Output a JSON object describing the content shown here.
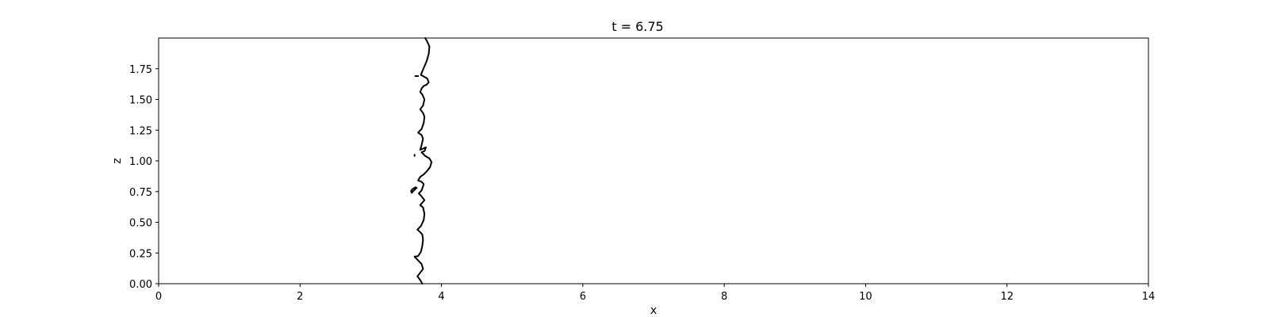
{
  "chart_data": {
    "type": "line",
    "title": "t = 6.75",
    "xlabel": "x",
    "ylabel": "z",
    "xlim": [
      0,
      14
    ],
    "ylim": [
      0,
      2
    ],
    "xticks": [
      0,
      2,
      4,
      6,
      8,
      10,
      12,
      14
    ],
    "xtick_labels": [
      "0",
      "2",
      "4",
      "6",
      "8",
      "10",
      "12",
      "14"
    ],
    "yticks": [
      0,
      0.25,
      0.5,
      0.75,
      1.0,
      1.25,
      1.5,
      1.75
    ],
    "ytick_labels": [
      "0.00",
      "0.25",
      "0.50",
      "0.75",
      "1.00",
      "1.25",
      "1.50",
      "1.75"
    ],
    "grid": false,
    "line_color": "#000000",
    "series": [
      {
        "points": [
          [
            3.73,
            0.0
          ],
          [
            3.7,
            0.03
          ],
          [
            3.66,
            0.06
          ],
          [
            3.7,
            0.09
          ],
          [
            3.74,
            0.12
          ],
          [
            3.72,
            0.16
          ],
          [
            3.67,
            0.19
          ],
          [
            3.62,
            0.22
          ],
          [
            3.67,
            0.225
          ],
          [
            3.71,
            0.26
          ],
          [
            3.73,
            0.31
          ],
          [
            3.74,
            0.36
          ],
          [
            3.73,
            0.4
          ],
          [
            3.7,
            0.42
          ],
          [
            3.66,
            0.44
          ],
          [
            3.71,
            0.47
          ],
          [
            3.75,
            0.52
          ],
          [
            3.76,
            0.57
          ],
          [
            3.74,
            0.62
          ],
          [
            3.7,
            0.64
          ],
          [
            3.73,
            0.66
          ],
          [
            3.76,
            0.68
          ],
          [
            3.72,
            0.71
          ],
          [
            3.68,
            0.735
          ],
          [
            3.72,
            0.76
          ],
          [
            3.75,
            0.81
          ],
          [
            3.72,
            0.83
          ],
          [
            3.67,
            0.84
          ],
          [
            3.7,
            0.87
          ],
          [
            3.75,
            0.89
          ],
          [
            3.8,
            0.92
          ],
          [
            3.84,
            0.95
          ],
          [
            3.86,
            0.99
          ],
          [
            3.83,
            1.02
          ],
          [
            3.77,
            1.04
          ],
          [
            3.72,
            1.07
          ],
          [
            3.76,
            1.08
          ],
          [
            3.78,
            1.11
          ],
          [
            3.74,
            1.1
          ],
          [
            3.7,
            1.09
          ],
          [
            3.72,
            1.13
          ],
          [
            3.74,
            1.18
          ],
          [
            3.72,
            1.21
          ],
          [
            3.67,
            1.23
          ],
          [
            3.72,
            1.26
          ],
          [
            3.75,
            1.31
          ],
          [
            3.76,
            1.36
          ],
          [
            3.74,
            1.39
          ],
          [
            3.7,
            1.42
          ],
          [
            3.74,
            1.45
          ],
          [
            3.76,
            1.5
          ],
          [
            3.73,
            1.54
          ],
          [
            3.7,
            1.56
          ],
          [
            3.72,
            1.59
          ],
          [
            3.75,
            1.61
          ],
          [
            3.79,
            1.62
          ],
          [
            3.82,
            1.64
          ],
          [
            3.8,
            1.67
          ],
          [
            3.74,
            1.69
          ],
          [
            3.71,
            1.7
          ],
          [
            3.73,
            1.73
          ],
          [
            3.76,
            1.77
          ],
          [
            3.79,
            1.81
          ],
          [
            3.82,
            1.87
          ],
          [
            3.83,
            1.93
          ],
          [
            3.8,
            1.97
          ],
          [
            3.77,
            2.0
          ]
        ]
      },
      {
        "points": [
          [
            3.58,
            0.74
          ],
          [
            3.61,
            0.76
          ],
          [
            3.65,
            0.78
          ],
          [
            3.63,
            0.785
          ],
          [
            3.59,
            0.77
          ],
          [
            3.57,
            0.755
          ],
          [
            3.58,
            0.74
          ]
        ]
      },
      {
        "points": [
          [
            3.62,
            1.04
          ],
          [
            3.62,
            1.05
          ]
        ]
      },
      {
        "points": [
          [
            3.63,
            1.69
          ],
          [
            3.67,
            1.69
          ]
        ]
      }
    ]
  }
}
